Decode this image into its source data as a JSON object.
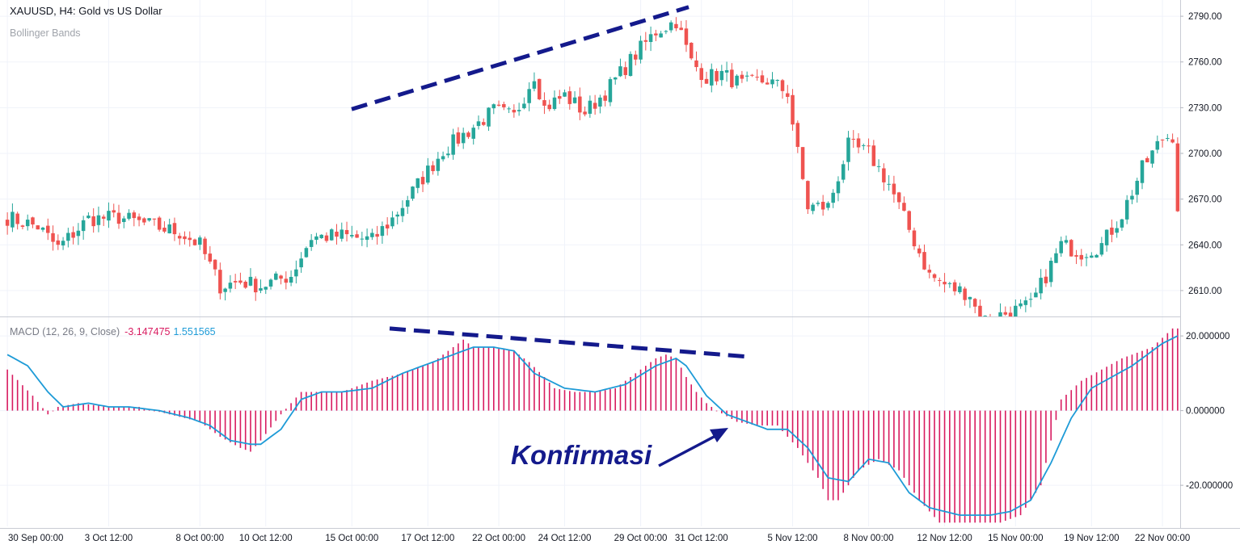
{
  "header": {
    "title": "XAUUSD, H4: Gold vs US Dollar",
    "overlay_label": "Bollinger Bands",
    "macd_label": "MACD (12, 26, 9, Close)",
    "macd_value": "-3.147475",
    "signal_value": "1.551565"
  },
  "annotation": {
    "text": "Konfirmasi"
  },
  "colors": {
    "up": "#26a69a",
    "down": "#ef5350",
    "histogram": "#d81b60",
    "signal_line": "#1e9bd7",
    "trendline": "#141a8c",
    "grid": "#f0f3fa"
  },
  "chart_data": [
    {
      "type": "candlestick",
      "title": "XAUUSD, H4: Gold vs US Dollar",
      "y_ticks": [
        "2790.00",
        "2760.00",
        "2730.00",
        "2700.00",
        "2670.00",
        "2640.00",
        "2610.00"
      ],
      "y_tick_values": [
        2790,
        2760,
        2730,
        2700,
        2670,
        2640,
        2610
      ],
      "ylim": [
        2593,
        2798
      ],
      "x_ticks": [
        "30 Sep 00:00",
        "3 Oct 12:00",
        "8 Oct 00:00",
        "10 Oct 12:00",
        "15 Oct 00:00",
        "17 Oct 12:00",
        "22 Oct 00:00",
        "24 Oct 12:00",
        "29 Oct 00:00",
        "31 Oct 12:00",
        "5 Nov 12:00",
        "8 Nov 00:00",
        "12 Nov 12:00",
        "15 Nov 00:00",
        "19 Nov 12:00",
        "22 Nov 00:00"
      ],
      "x_tick_index": [
        0,
        20,
        38,
        51,
        68,
        83,
        97,
        110,
        125,
        137,
        155,
        170,
        185,
        199,
        214,
        228
      ],
      "close_path": [
        [
          0,
          2658
        ],
        [
          6,
          2652
        ],
        [
          10,
          2638
        ],
        [
          16,
          2657
        ],
        [
          22,
          2658
        ],
        [
          28,
          2653
        ],
        [
          34,
          2648
        ],
        [
          38,
          2640
        ],
        [
          42,
          2613
        ],
        [
          46,
          2616
        ],
        [
          50,
          2613
        ],
        [
          56,
          2620
        ],
        [
          60,
          2645
        ],
        [
          66,
          2646
        ],
        [
          72,
          2643
        ],
        [
          76,
          2657
        ],
        [
          80,
          2675
        ],
        [
          86,
          2702
        ],
        [
          90,
          2712
        ],
        [
          96,
          2728
        ],
        [
          100,
          2724
        ],
        [
          104,
          2752
        ],
        [
          106,
          2730
        ],
        [
          110,
          2738
        ],
        [
          114,
          2727
        ],
        [
          118,
          2740
        ],
        [
          124,
          2765
        ],
        [
          128,
          2780
        ],
        [
          132,
          2787
        ],
        [
          135,
          2760
        ],
        [
          138,
          2750
        ],
        [
          141,
          2752
        ],
        [
          145,
          2745
        ],
        [
          150,
          2748
        ],
        [
          154,
          2740
        ],
        [
          156,
          2700
        ],
        [
          158,
          2665
        ],
        [
          162,
          2665
        ],
        [
          166,
          2705
        ],
        [
          170,
          2700
        ],
        [
          174,
          2680
        ],
        [
          178,
          2650
        ],
        [
          182,
          2620
        ],
        [
          186,
          2612
        ],
        [
          190,
          2608
        ],
        [
          192,
          2590
        ],
        [
          202,
          2600
        ],
        [
          208,
          2640
        ],
        [
          212,
          2635
        ],
        [
          216,
          2640
        ],
        [
          220,
          2660
        ],
        [
          224,
          2690
        ],
        [
          228,
          2710
        ],
        [
          230,
          2712
        ],
        [
          231,
          2665
        ]
      ],
      "annotations": [
        "rising trendline over price highs"
      ]
    },
    {
      "type": "bar+line",
      "title": "MACD (12, 26, 9, Close)",
      "y_ticks": [
        "20.000000",
        "0.000000",
        "-20.000000"
      ],
      "y_tick_values": [
        20,
        0,
        -20
      ],
      "ylim": [
        -31,
        25
      ],
      "histogram": [
        [
          0,
          11
        ],
        [
          5,
          4
        ],
        [
          8,
          -1
        ],
        [
          10,
          1
        ],
        [
          14,
          2
        ],
        [
          20,
          1
        ],
        [
          26,
          1
        ],
        [
          32,
          -1
        ],
        [
          38,
          -3
        ],
        [
          42,
          -7
        ],
        [
          46,
          -10
        ],
        [
          48,
          -11
        ],
        [
          50,
          -8
        ],
        [
          54,
          -1
        ],
        [
          58,
          5
        ],
        [
          62,
          5
        ],
        [
          66,
          5
        ],
        [
          72,
          8
        ],
        [
          78,
          10
        ],
        [
          84,
          13
        ],
        [
          88,
          17
        ],
        [
          90,
          19
        ],
        [
          92,
          17
        ],
        [
          96,
          17
        ],
        [
          100,
          16
        ],
        [
          103,
          13
        ],
        [
          106,
          9
        ],
        [
          108,
          6
        ],
        [
          112,
          5
        ],
        [
          116,
          5
        ],
        [
          120,
          6
        ],
        [
          124,
          10
        ],
        [
          128,
          14
        ],
        [
          130,
          15
        ],
        [
          132,
          14
        ],
        [
          134,
          9
        ],
        [
          136,
          5
        ],
        [
          138,
          2
        ],
        [
          140,
          0
        ],
        [
          144,
          -3
        ],
        [
          148,
          -4
        ],
        [
          152,
          -4
        ],
        [
          156,
          -10
        ],
        [
          160,
          -18
        ],
        [
          162,
          -24
        ],
        [
          164,
          -24
        ],
        [
          168,
          -16
        ],
        [
          172,
          -13
        ],
        [
          176,
          -16
        ],
        [
          180,
          -24
        ],
        [
          184,
          -30
        ],
        [
          188,
          -30
        ],
        [
          192,
          -30
        ],
        [
          196,
          -30
        ],
        [
          200,
          -28
        ],
        [
          204,
          -20
        ],
        [
          206,
          -8
        ],
        [
          208,
          3
        ],
        [
          212,
          8
        ],
        [
          216,
          11
        ],
        [
          220,
          14
        ],
        [
          226,
          17
        ],
        [
          230,
          22
        ],
        [
          232,
          22
        ]
      ],
      "signal": [
        [
          0,
          15
        ],
        [
          4,
          12
        ],
        [
          8,
          5
        ],
        [
          11,
          1
        ],
        [
          16,
          2
        ],
        [
          20,
          1
        ],
        [
          24,
          1
        ],
        [
          30,
          0
        ],
        [
          36,
          -2
        ],
        [
          40,
          -4
        ],
        [
          44,
          -8
        ],
        [
          48,
          -9
        ],
        [
          50,
          -9
        ],
        [
          54,
          -5
        ],
        [
          58,
          3
        ],
        [
          62,
          5
        ],
        [
          66,
          5
        ],
        [
          72,
          6
        ],
        [
          78,
          10
        ],
        [
          86,
          14
        ],
        [
          92,
          17
        ],
        [
          96,
          17
        ],
        [
          100,
          16
        ],
        [
          104,
          10
        ],
        [
          110,
          6
        ],
        [
          116,
          5
        ],
        [
          122,
          7
        ],
        [
          128,
          12
        ],
        [
          132,
          14
        ],
        [
          134,
          12
        ],
        [
          138,
          4
        ],
        [
          142,
          -1
        ],
        [
          146,
          -3
        ],
        [
          150,
          -5
        ],
        [
          154,
          -5
        ],
        [
          158,
          -10
        ],
        [
          162,
          -18
        ],
        [
          166,
          -19
        ],
        [
          170,
          -13
        ],
        [
          174,
          -14
        ],
        [
          178,
          -22
        ],
        [
          182,
          -26
        ],
        [
          188,
          -28
        ],
        [
          194,
          -28
        ],
        [
          198,
          -27
        ],
        [
          202,
          -24
        ],
        [
          206,
          -14
        ],
        [
          210,
          -2
        ],
        [
          214,
          6
        ],
        [
          218,
          9
        ],
        [
          222,
          12
        ],
        [
          228,
          18
        ],
        [
          231,
          20
        ]
      ],
      "annotations": [
        "falling trendline over MACD peaks",
        "Konfirmasi arrow at signal zero-cross"
      ]
    }
  ]
}
